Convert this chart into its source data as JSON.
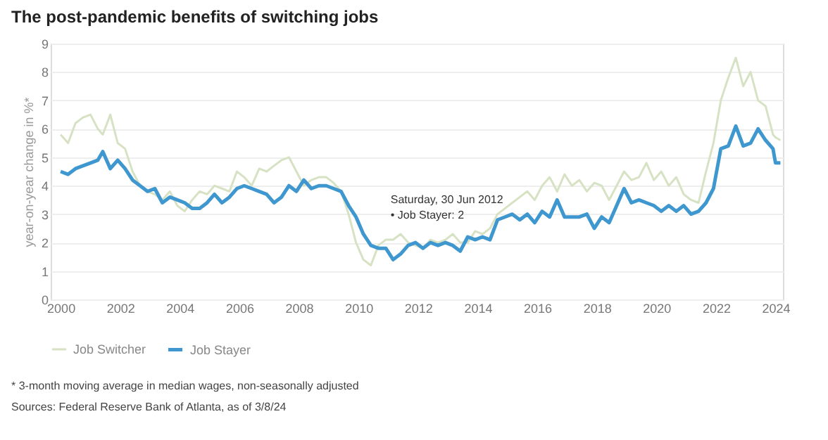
{
  "chart_data": {
    "type": "line",
    "title": "The post-pandemic benefits of switching jobs",
    "ylabel": "year-on-year change in %*",
    "x": [
      "2000-01",
      "2000-04",
      "2000-07",
      "2000-10",
      "2001-01",
      "2001-04",
      "2001-06",
      "2001-09",
      "2001-12",
      "2002-03",
      "2002-06",
      "2002-09",
      "2002-12",
      "2003-03",
      "2003-06",
      "2003-09",
      "2003-12",
      "2004-03",
      "2004-06",
      "2004-09",
      "2004-12",
      "2005-03",
      "2005-06",
      "2005-09",
      "2005-12",
      "2006-03",
      "2006-06",
      "2006-09",
      "2006-12",
      "2007-03",
      "2007-06",
      "2007-09",
      "2007-12",
      "2008-03",
      "2008-06",
      "2008-09",
      "2008-12",
      "2009-03",
      "2009-06",
      "2009-09",
      "2009-12",
      "2010-03",
      "2010-06",
      "2010-09",
      "2010-12",
      "2011-03",
      "2011-06",
      "2011-09",
      "2011-12",
      "2012-03",
      "2012-06",
      "2012-09",
      "2012-12",
      "2013-03",
      "2013-06",
      "2013-09",
      "2013-12",
      "2014-03",
      "2014-06",
      "2014-09",
      "2014-12",
      "2015-03",
      "2015-06",
      "2015-09",
      "2015-12",
      "2016-03",
      "2016-06",
      "2016-09",
      "2016-12",
      "2017-03",
      "2017-06",
      "2017-09",
      "2017-12",
      "2018-03",
      "2018-06",
      "2018-09",
      "2018-12",
      "2019-03",
      "2019-06",
      "2019-09",
      "2019-12",
      "2020-03",
      "2020-06",
      "2020-09",
      "2020-12",
      "2021-03",
      "2021-06",
      "2021-09",
      "2021-12",
      "2022-03",
      "2022-06",
      "2022-09",
      "2022-12",
      "2023-03",
      "2023-06",
      "2023-09",
      "2023-12",
      "2024-01",
      "2024-03"
    ],
    "series": [
      {
        "name": "Job Switcher",
        "color": "#d6e2c3",
        "values": [
          5.8,
          5.5,
          6.2,
          6.4,
          6.5,
          6.0,
          5.8,
          6.5,
          5.5,
          5.3,
          4.5,
          4.0,
          3.8,
          3.7,
          3.5,
          3.8,
          3.3,
          3.1,
          3.5,
          3.8,
          3.7,
          4.0,
          3.9,
          3.8,
          4.5,
          4.3,
          4.0,
          4.6,
          4.5,
          4.7,
          4.9,
          5.0,
          4.5,
          4.0,
          4.2,
          4.3,
          4.3,
          4.1,
          3.8,
          3.0,
          2.0,
          1.4,
          1.2,
          1.9,
          2.1,
          2.1,
          2.3,
          2.0,
          1.9,
          1.8,
          2.1,
          2.0,
          2.1,
          2.3,
          2.0,
          2.0,
          2.4,
          2.3,
          2.5,
          3.0,
          3.2,
          3.4,
          3.6,
          3.8,
          3.5,
          4.0,
          4.3,
          3.8,
          4.4,
          4.0,
          4.2,
          3.8,
          4.1,
          4.0,
          3.5,
          4.0,
          4.5,
          4.2,
          4.3,
          4.8,
          4.2,
          4.5,
          4.0,
          4.3,
          3.7,
          3.5,
          3.4,
          4.5,
          5.5,
          7.0,
          7.8,
          8.5,
          7.5,
          8.0,
          7.0,
          6.8,
          5.8,
          5.7,
          5.6
        ]
      },
      {
        "name": "Job Stayer",
        "color": "#3f97cf",
        "values": [
          4.5,
          4.4,
          4.6,
          4.7,
          4.8,
          4.9,
          5.2,
          4.6,
          4.9,
          4.6,
          4.2,
          4.0,
          3.8,
          3.9,
          3.4,
          3.6,
          3.5,
          3.4,
          3.2,
          3.2,
          3.4,
          3.7,
          3.4,
          3.6,
          3.9,
          4.0,
          3.9,
          3.8,
          3.7,
          3.4,
          3.6,
          4.0,
          3.8,
          4.2,
          3.9,
          4.0,
          4.0,
          3.9,
          3.8,
          3.3,
          2.9,
          2.3,
          1.9,
          1.8,
          1.8,
          1.4,
          1.6,
          1.9,
          2.0,
          1.8,
          2.0,
          1.9,
          2.0,
          1.9,
          1.7,
          2.2,
          2.1,
          2.2,
          2.1,
          2.8,
          2.9,
          3.0,
          2.8,
          3.0,
          2.7,
          3.1,
          2.9,
          3.5,
          2.9,
          2.9,
          2.9,
          3.0,
          2.5,
          2.9,
          2.7,
          3.3,
          3.9,
          3.4,
          3.5,
          3.4,
          3.3,
          3.1,
          3.3,
          3.1,
          3.3,
          3.0,
          3.1,
          3.4,
          3.9,
          5.3,
          5.4,
          6.1,
          5.4,
          5.5,
          6.0,
          5.6,
          5.3,
          4.8,
          4.8
        ]
      }
    ],
    "xlim": [
      "1999-09",
      "2024-04"
    ],
    "xticks": [
      "2000",
      "2002",
      "2004",
      "2006",
      "2008",
      "2010",
      "2012",
      "2014",
      "2016",
      "2018",
      "2020",
      "2022",
      "2024"
    ],
    "ylim": [
      0,
      9
    ],
    "yticks": [
      0,
      1,
      2,
      3,
      4,
      5,
      6,
      7,
      8,
      9
    ],
    "grid": "y",
    "legend": "bottom left",
    "annotations": [
      {
        "text": "Saturday, 30 Jun 2012\n• Job Stayer: 2",
        "x": "2012-06-30",
        "y": 2
      },
      "* 3-month moving average in median wages, non-seasonally adjusted",
      "Sources: Federal Reserve Bank of Atlanta, as of 3/8/24"
    ]
  }
}
